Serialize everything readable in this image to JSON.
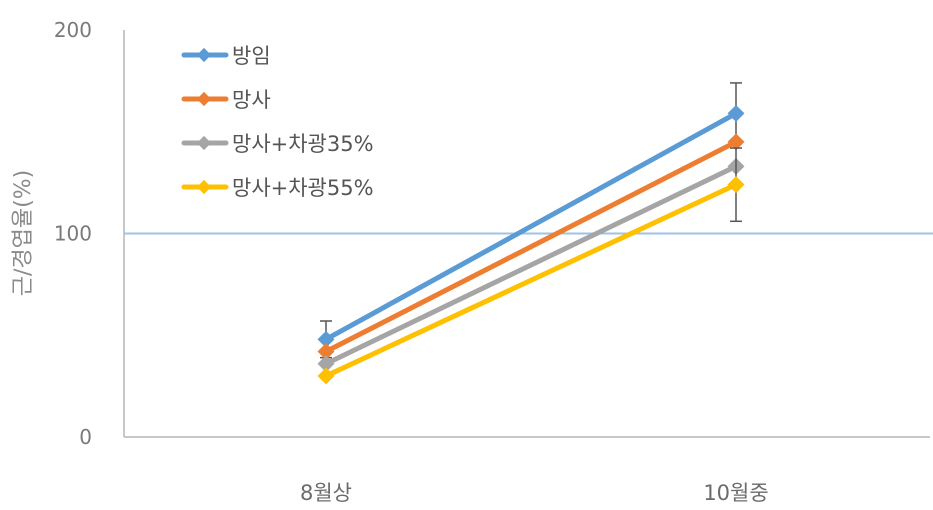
{
  "chart_data": {
    "type": "line",
    "title": "",
    "xlabel": "",
    "ylabel": "근/경엽율(%)",
    "categories": [
      "8월상",
      "10월중"
    ],
    "ylim": [
      0,
      200
    ],
    "yticks": [
      0,
      100,
      200
    ],
    "reference_line": {
      "y": 100,
      "color": "#9dc3e6"
    },
    "legend_position": "top-left",
    "series": [
      {
        "name": "방임",
        "color": "#5b9bd5",
        "values": [
          48,
          159
        ],
        "error": [
          9,
          15
        ]
      },
      {
        "name": "망사",
        "color": "#ed7d31",
        "values": [
          42,
          145
        ],
        "error": null
      },
      {
        "name": "망사+차광35%",
        "color": "#a5a5a5",
        "values": [
          36,
          133
        ],
        "error": null
      },
      {
        "name": "망사+차광55%",
        "color": "#ffc000",
        "values": [
          30,
          124
        ],
        "error": [
          0,
          18
        ]
      }
    ]
  }
}
